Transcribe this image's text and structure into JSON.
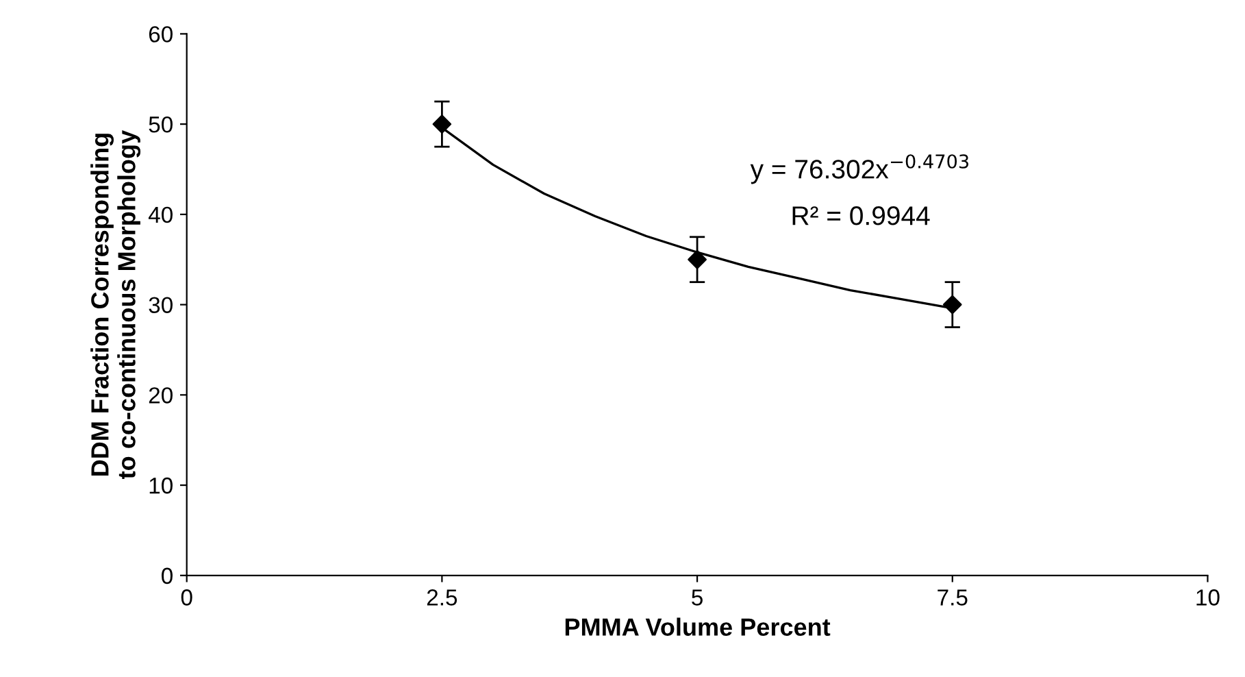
{
  "chart_data": {
    "type": "scatter",
    "xlabel": "PMMA Volume Percent",
    "ylabel": "DDM Fraction Corresponding\nto co-continuous Morphology",
    "xlim": [
      0,
      10
    ],
    "xticks": [
      0,
      2.5,
      5,
      7.5,
      10
    ],
    "ylim": [
      0,
      60
    ],
    "yticks": [
      0,
      10,
      20,
      30,
      40,
      50,
      60
    ],
    "grid": false,
    "legend": false,
    "series": [
      {
        "color": "#000000",
        "marker": "diamond",
        "x": [
          2.5,
          5,
          7.5
        ],
        "values": [
          50,
          35,
          30
        ],
        "errors": [
          2.5,
          2.5,
          2.5
        ]
      },
      {
        "type": "line",
        "color": "#000000",
        "marker": "none",
        "line_style": "solid",
        "x": [
          2.5,
          3,
          3.5,
          4,
          4.5,
          5,
          5.5,
          6,
          6.5,
          7,
          7.5
        ],
        "values": [
          49.6,
          45.5,
          42.3,
          39.8,
          37.6,
          35.8,
          34.2,
          32.9,
          31.6,
          30.6,
          29.6
        ]
      }
    ],
    "annotations": [
      "y = 76.302x$^{−0.4703}$",
      "R² = 0.9944"
    ]
  }
}
